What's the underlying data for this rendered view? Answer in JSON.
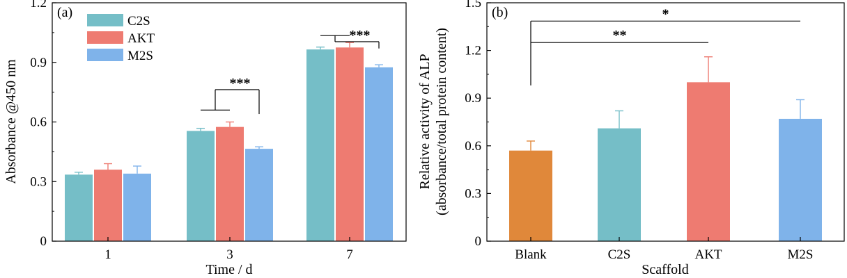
{
  "colors": {
    "Blank": "#e0883a",
    "C2S": "#75bec7",
    "AKT": "#ee7b71",
    "M2S": "#7fb3ea"
  },
  "chart_data": [
    {
      "panel_label": "(a)",
      "type": "bar",
      "title": "",
      "xlabel": "Time / d",
      "ylabel": "Absorbance @450 nm",
      "categories": [
        "1",
        "3",
        "7"
      ],
      "ylim": [
        0,
        1.2
      ],
      "yticks": [
        "0",
        "0.3",
        "0.6",
        "0.9",
        "1.2"
      ],
      "legend_position": "top-left",
      "series": [
        {
          "name": "C2S",
          "values": [
            0.335,
            0.555,
            0.965
          ],
          "errors": [
            0.012,
            0.013,
            0.012
          ]
        },
        {
          "name": "AKT",
          "values": [
            0.36,
            0.575,
            0.975
          ],
          "errors": [
            0.03,
            0.025,
            0.025
          ]
        },
        {
          "name": "M2S",
          "values": [
            0.34,
            0.465,
            0.875
          ],
          "errors": [
            0.038,
            0.01,
            0.013
          ]
        }
      ],
      "significance": [
        {
          "category": "3",
          "label": "***"
        },
        {
          "category": "7",
          "label": "***"
        }
      ]
    },
    {
      "panel_label": "(b)",
      "type": "bar",
      "title": "",
      "xlabel": "Scaffold",
      "ylabel_lines": [
        "Relative activity of ALP",
        "(absorbance/total protein content)"
      ],
      "categories": [
        "Blank",
        "C2S",
        "AKT",
        "M2S"
      ],
      "values": [
        0.57,
        0.71,
        1.0,
        0.77
      ],
      "errors": [
        0.06,
        0.11,
        0.16,
        0.12
      ],
      "ylim": [
        0,
        1.5
      ],
      "yticks": [
        "0",
        "0.3",
        "0.6",
        "0.9",
        "1.2",
        "1.5"
      ],
      "significance": [
        {
          "from": "Blank",
          "to": "AKT",
          "label": "**"
        },
        {
          "from": "Blank",
          "to": "M2S",
          "label": "*"
        }
      ]
    }
  ]
}
